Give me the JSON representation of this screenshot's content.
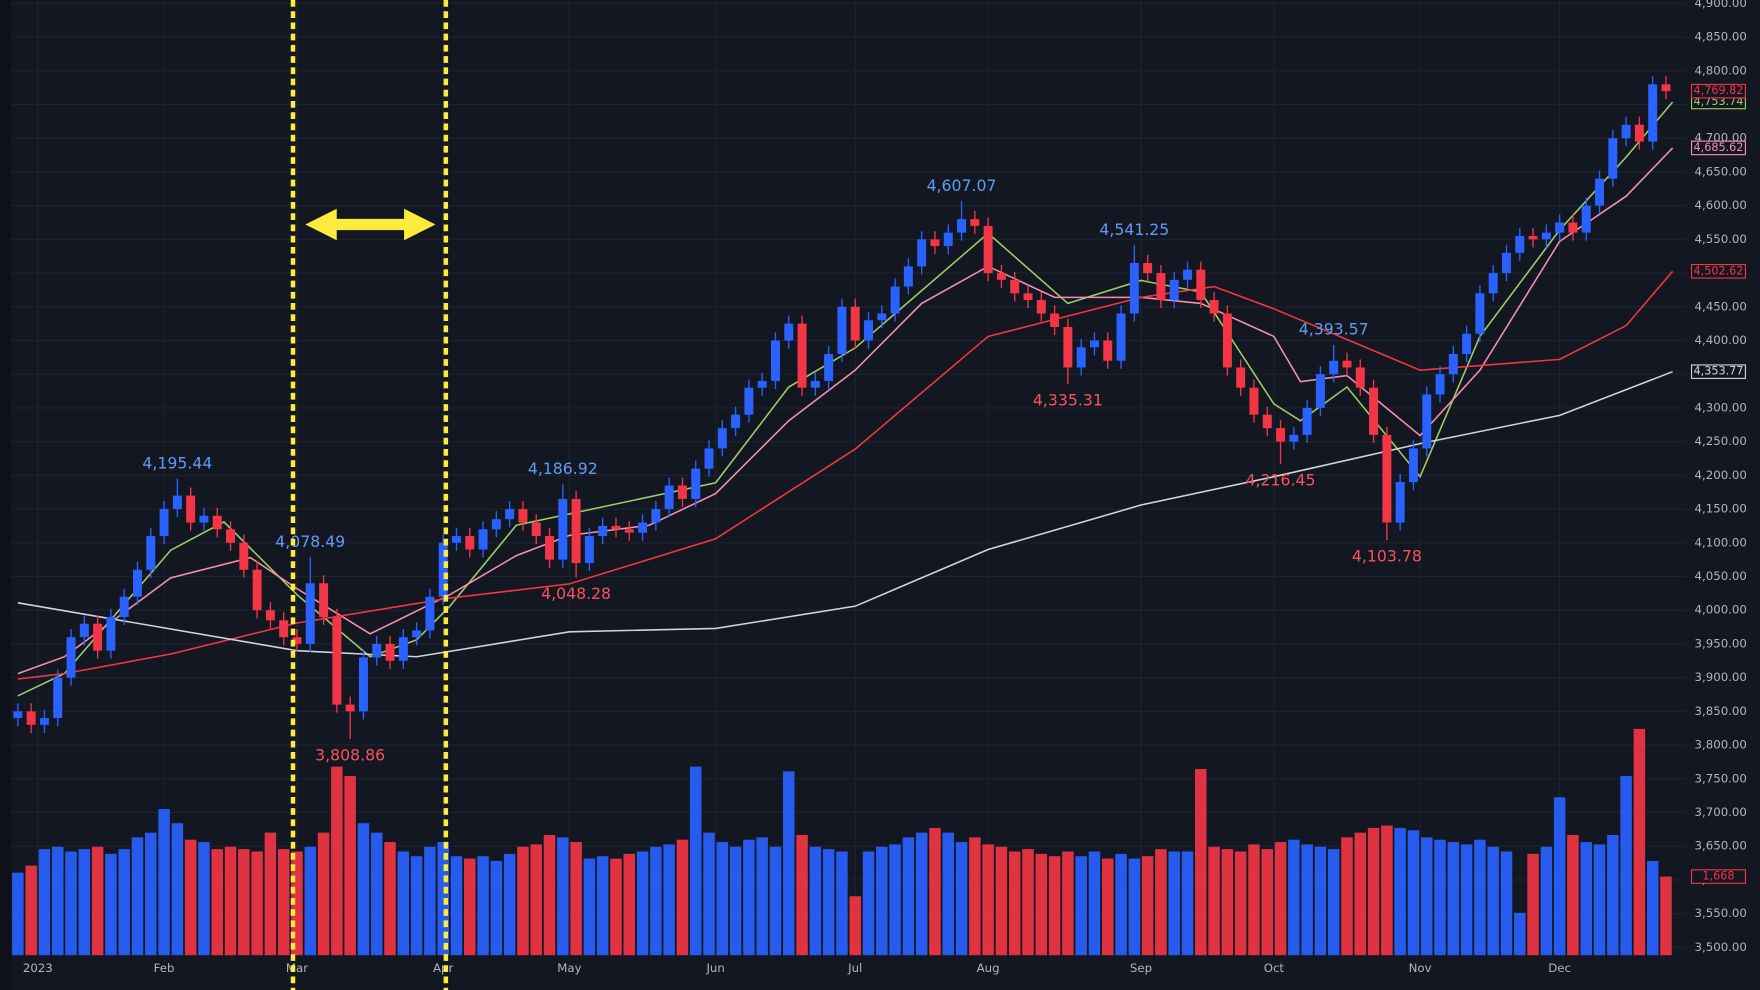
{
  "chart_data": {
    "type": "candlestick",
    "xlim": [
      -1,
      251
    ],
    "ylim": [
      3500,
      4900
    ],
    "xticks": [
      {
        "value": 3,
        "label": "2023"
      },
      {
        "value": 22,
        "label": "Feb"
      },
      {
        "value": 42,
        "label": "Mar"
      },
      {
        "value": 64,
        "label": "Apr"
      },
      {
        "value": 83,
        "label": "May"
      },
      {
        "value": 105,
        "label": "Jun"
      },
      {
        "value": 126,
        "label": "Jul"
      },
      {
        "value": 146,
        "label": "Aug"
      },
      {
        "value": 169,
        "label": "Sep"
      },
      {
        "value": 189,
        "label": "Oct"
      },
      {
        "value": 211,
        "label": "Nov"
      },
      {
        "value": 232,
        "label": "Dec"
      }
    ],
    "yticks": [
      {
        "value": 3500,
        "label": "3,500.00"
      },
      {
        "value": 3550,
        "label": "3,550.00"
      },
      {
        "value": 3600,
        "label": "3,600.00"
      },
      {
        "value": 3650,
        "label": "3,650.00"
      },
      {
        "value": 3700,
        "label": "3,700.00"
      },
      {
        "value": 3750,
        "label": "3,750.00"
      },
      {
        "value": 3800,
        "label": "3,800.00"
      },
      {
        "value": 3850,
        "label": "3,850.00"
      },
      {
        "value": 3900,
        "label": "3,900.00"
      },
      {
        "value": 3950,
        "label": "3,950.00"
      },
      {
        "value": 4000,
        "label": "4,000.00"
      },
      {
        "value": 4050,
        "label": "4,050.00"
      },
      {
        "value": 4100,
        "label": "4,100.00"
      },
      {
        "value": 4150,
        "label": "4,150.00"
      },
      {
        "value": 4200,
        "label": "4,200.00"
      },
      {
        "value": 4250,
        "label": "4,250.00"
      },
      {
        "value": 4300,
        "label": "4,300.00"
      },
      {
        "value": 4350,
        "label": "4,350.00"
      },
      {
        "value": 4400,
        "label": "4,400.00"
      },
      {
        "value": 4450,
        "label": "4,450.00"
      },
      {
        "value": 4500,
        "label": "4,500.00"
      },
      {
        "value": 4550,
        "label": "4,550.00"
      },
      {
        "value": 4600,
        "label": "4,600.00"
      },
      {
        "value": 4650,
        "label": "4,650.00"
      },
      {
        "value": 4700,
        "label": "4,700.00"
      },
      {
        "value": 4750,
        "label": "4,750.00"
      },
      {
        "value": 4800,
        "label": "4,800.00"
      },
      {
        "value": 4850,
        "label": "4,850.00"
      },
      {
        "value": 4900,
        "label": "4,900.00"
      }
    ],
    "grid": true,
    "up_color": "#2962ff",
    "down_color": "#f23645",
    "x": [
      0,
      2,
      4,
      6,
      8,
      10,
      12,
      14,
      16,
      18,
      20,
      22,
      24,
      26,
      28,
      30,
      32,
      34,
      36,
      38,
      40,
      42,
      44,
      46,
      48,
      50,
      52,
      54,
      56,
      58,
      60,
      62,
      64,
      66,
      68,
      70,
      72,
      74,
      76,
      78,
      80,
      82,
      84,
      86,
      88,
      90,
      92,
      94,
      96,
      98,
      100,
      102,
      104,
      106,
      108,
      110,
      112,
      114,
      116,
      118,
      120,
      122,
      124,
      126,
      128,
      130,
      132,
      134,
      136,
      138,
      140,
      142,
      144,
      146,
      148,
      150,
      152,
      154,
      156,
      158,
      160,
      162,
      164,
      166,
      168,
      170,
      172,
      174,
      176,
      178,
      180,
      182,
      184,
      186,
      188,
      190,
      192,
      194,
      196,
      198,
      200,
      202,
      204,
      206,
      208,
      210,
      212,
      214,
      216,
      218,
      220,
      222,
      224,
      226,
      228,
      230,
      232,
      234,
      236,
      238,
      240,
      242,
      244,
      246,
      248
    ],
    "open": [
      3840,
      3850,
      3830,
      3840,
      3900,
      3960,
      3980,
      3940,
      3990,
      4020,
      4060,
      4110,
      4150,
      4170,
      4130,
      4140,
      4120,
      4100,
      4060,
      4000,
      3985,
      3960,
      3950,
      4040,
      3990,
      3860,
      3850,
      3930,
      3950,
      3925,
      3960,
      3970,
      4020,
      4100,
      4110,
      4090,
      4120,
      4135,
      4150,
      4130,
      4110,
      4075,
      4165,
      4070,
      4110,
      4125,
      4120,
      4115,
      4130,
      4150,
      4185,
      4165,
      4210,
      4240,
      4270,
      4290,
      4330,
      4340,
      4400,
      4425,
      4330,
      4340,
      4380,
      4450,
      4400,
      4430,
      4440,
      4480,
      4510,
      4550,
      4540,
      4560,
      4580,
      4570,
      4500,
      4490,
      4470,
      4460,
      4440,
      4420,
      4360,
      4390,
      4400,
      4370,
      4440,
      4515,
      4500,
      4460,
      4490,
      4505,
      4460,
      4440,
      4360,
      4330,
      4290,
      4270,
      4250,
      4260,
      4300,
      4350,
      4370,
      4360,
      4330,
      4260,
      4130,
      4190,
      4240,
      4320,
      4350,
      4380,
      4410,
      4470,
      4500,
      4530,
      4555,
      4550,
      4560,
      4575,
      4560,
      4600,
      4640,
      4700,
      4720,
      4695,
      4780
    ],
    "high": [
      3862,
      3862,
      3852,
      3912,
      3972,
      3992,
      3992,
      4002,
      4032,
      4072,
      4122,
      4162,
      4195.44,
      4182,
      4152,
      4152,
      4132,
      4112,
      4072,
      4012,
      3997,
      3972,
      4078.49,
      4052,
      4002,
      3872,
      3942,
      3962,
      3962,
      3972,
      3982,
      4032,
      4112,
      4122,
      4122,
      4132,
      4147,
      4162,
      4162,
      4142,
      4122,
      4186.92,
      4177,
      4122,
      4137,
      4137,
      4132,
      4142,
      4162,
      4197,
      4197,
      4222,
      4252,
      4282,
      4302,
      4342,
      4352,
      4412,
      4437,
      4437,
      4352,
      4392,
      4462,
      4462,
      4442,
      4452,
      4492,
      4522,
      4562,
      4562,
      4572,
      4607.07,
      4592,
      4582,
      4512,
      4502,
      4482,
      4472,
      4452,
      4432,
      4402,
      4412,
      4412,
      4452,
      4541.25,
      4527,
      4512,
      4502,
      4517,
      4517,
      4472,
      4452,
      4372,
      4342,
      4302,
      4282,
      4272,
      4312,
      4362,
      4393.57,
      4382,
      4372,
      4342,
      4272,
      4202,
      4252,
      4332,
      4362,
      4392,
      4422,
      4482,
      4512,
      4542,
      4567,
      4567,
      4572,
      4587,
      4587,
      4612,
      4652,
      4712,
      4732,
      4732,
      4792,
      4792
    ],
    "low": [
      3828,
      3818,
      3818,
      3828,
      3888,
      3948,
      3928,
      3928,
      3978,
      4008,
      4048,
      4098,
      4138,
      4118,
      4118,
      4108,
      4088,
      4048,
      3988,
      3973,
      3948,
      3938,
      3938,
      3978,
      3848,
      3808.86,
      3838,
      3918,
      3913,
      3913,
      3948,
      3958,
      4008,
      4088,
      4078,
      4078,
      4108,
      4123,
      4118,
      4098,
      4063,
      4063,
      4048.28,
      4058,
      4098,
      4108,
      4103,
      4103,
      4118,
      4138,
      4153,
      4153,
      4198,
      4228,
      4258,
      4278,
      4318,
      4328,
      4388,
      4318,
      4318,
      4328,
      4368,
      4388,
      4388,
      4418,
      4428,
      4468,
      4498,
      4528,
      4528,
      4548,
      4558,
      4488,
      4478,
      4458,
      4448,
      4428,
      4408,
      4335.31,
      4348,
      4378,
      4358,
      4358,
      4428,
      4488,
      4448,
      4448,
      4478,
      4448,
      4428,
      4348,
      4318,
      4278,
      4258,
      4216.45,
      4238,
      4248,
      4288,
      4338,
      4348,
      4318,
      4248,
      4103.78,
      4118,
      4178,
      4228,
      4308,
      4338,
      4368,
      4398,
      4458,
      4488,
      4518,
      4538,
      4538,
      4548,
      4548,
      4548,
      4588,
      4628,
      4688,
      4683,
      4683,
      4757.82
    ],
    "close": [
      3850,
      3830,
      3840,
      3900,
      3960,
      3980,
      3940,
      3990,
      4020,
      4060,
      4110,
      4150,
      4170,
      4130,
      4140,
      4120,
      4100,
      4060,
      4000,
      3985,
      3960,
      3950,
      4040,
      3990,
      3860,
      3850,
      3930,
      3950,
      3925,
      3960,
      3970,
      4020,
      4100,
      4110,
      4090,
      4120,
      4135,
      4150,
      4130,
      4110,
      4075,
      4165,
      4070,
      4110,
      4125,
      4120,
      4115,
      4130,
      4150,
      4185,
      4165,
      4210,
      4240,
      4270,
      4290,
      4330,
      4340,
      4400,
      4425,
      4330,
      4340,
      4380,
      4450,
      4400,
      4430,
      4440,
      4480,
      4510,
      4550,
      4540,
      4560,
      4580,
      4570,
      4500,
      4490,
      4470,
      4460,
      4440,
      4420,
      4360,
      4390,
      4400,
      4370,
      4440,
      4515,
      4500,
      4460,
      4490,
      4505,
      4460,
      4440,
      4360,
      4330,
      4290,
      4270,
      4250,
      4260,
      4300,
      4350,
      4370,
      4360,
      4330,
      4260,
      4130,
      4190,
      4240,
      4320,
      4350,
      4380,
      4410,
      4470,
      4500,
      4530,
      4555,
      4550,
      4560,
      4575,
      4560,
      4600,
      4640,
      4700,
      4720,
      4695,
      4780,
      4769.82
    ],
    "last_label": "4,769.82",
    "volume": {
      "ylim": [
        0,
        6000
      ],
      "last_label": "1,668",
      "values": [
        1750,
        1900,
        2250,
        2300,
        2200,
        2250,
        2300,
        2150,
        2250,
        2500,
        2600,
        3100,
        2800,
        2450,
        2400,
        2250,
        2300,
        2250,
        2200,
        2600,
        2250,
        2200,
        2300,
        2600,
        4000,
        3800,
        2800,
        2600,
        2400,
        2200,
        2100,
        2300,
        2400,
        2100,
        2050,
        2100,
        2000,
        2150,
        2300,
        2350,
        2550,
        2500,
        2400,
        2050,
        2100,
        2050,
        2150,
        2200,
        2300,
        2350,
        2450,
        4000,
        2600,
        2400,
        2300,
        2450,
        2500,
        2300,
        3900,
        2550,
        2300,
        2250,
        2200,
        1250,
        2200,
        2300,
        2350,
        2500,
        2600,
        2700,
        2600,
        2400,
        2500,
        2350,
        2300,
        2200,
        2250,
        2150,
        2100,
        2200,
        2100,
        2200,
        2050,
        2150,
        2050,
        2100,
        2250,
        2200,
        2200,
        3950,
        2300,
        2250,
        2200,
        2350,
        2250,
        2400,
        2450,
        2350,
        2300,
        2250,
        2500,
        2600,
        2700,
        2750,
        2700,
        2650,
        2500,
        2450,
        2400,
        2350,
        2450,
        2300,
        2200,
        900,
        2150,
        2300,
        3350,
        2550,
        2400,
        2350,
        2550,
        3800,
        4800,
        2000,
        1668
      ]
    },
    "moving_averages": [
      {
        "color": "#9ccc65",
        "last_label": "4,753.74",
        "x": [
          0,
          7,
          23,
          31,
          42,
          53,
          60,
          65,
          75,
          105,
          116,
          126,
          146,
          158,
          169,
          178,
          189,
          193,
          200,
          211,
          220,
          232,
          242,
          249
        ],
        "values": [
          3873,
          3906,
          4089,
          4131,
          4023,
          3931,
          3956,
          4006,
          4126,
          4189,
          4331,
          4389,
          4559,
          4455,
          4489,
          4472,
          4306,
          4281,
          4331,
          4198,
          4406,
          4564,
          4672,
          4753.74
        ]
      },
      {
        "color": "#f48fb1",
        "last_label": "4,685.62",
        "x": [
          0,
          7,
          23,
          35,
          42,
          53,
          65,
          75,
          83,
          95,
          105,
          116,
          126,
          136,
          146,
          156,
          169,
          178,
          189,
          193,
          200,
          211,
          220,
          232,
          242,
          249
        ],
        "values": [
          3906,
          3931,
          4048,
          4078,
          4032,
          3965,
          4023,
          4081,
          4111,
          4126,
          4173,
          4281,
          4356,
          4455,
          4510,
          4464,
          4464,
          4455,
          4406,
          4339,
          4348,
          4259,
          4356,
          4547,
          4614,
          4685.62
        ]
      },
      {
        "color": "#f23645",
        "last_label": "4,502.62",
        "x": [
          0,
          7,
          23,
          42,
          65,
          83,
          105,
          126,
          146,
          169,
          180,
          189,
          211,
          232,
          242,
          249
        ],
        "values": [
          3898,
          3906,
          3935,
          3981,
          4018,
          4039,
          4106,
          4239,
          4406,
          4464,
          4480,
          4447,
          4356,
          4372,
          4422,
          4502.62
        ]
      },
      {
        "color": "#d1d4dc",
        "last_label": "4,353.77",
        "x": [
          0,
          42,
          60,
          83,
          105,
          126,
          146,
          169,
          189,
          211,
          232,
          249
        ],
        "values": [
          4011,
          3940,
          3931,
          3968,
          3973,
          4006,
          4090,
          4156,
          4198,
          4247,
          4289,
          4353.77
        ]
      }
    ],
    "annotations": [
      {
        "label": "4,195.44",
        "value": 4195.44,
        "x": 24,
        "kind": "high"
      },
      {
        "label": "4,078.49",
        "value": 4078.49,
        "x": 44,
        "kind": "high"
      },
      {
        "label": "3,808.86",
        "value": 3808.86,
        "x": 50,
        "kind": "low"
      },
      {
        "label": "4,186.92",
        "value": 4186.92,
        "x": 82,
        "kind": "high"
      },
      {
        "label": "4,048.28",
        "value": 4048.28,
        "x": 84,
        "kind": "low"
      },
      {
        "label": "4,607.07",
        "value": 4607.07,
        "x": 142,
        "kind": "high"
      },
      {
        "label": "4,335.31",
        "value": 4335.31,
        "x": 158,
        "kind": "low"
      },
      {
        "label": "4,541.25",
        "value": 4541.25,
        "x": 168,
        "kind": "high"
      },
      {
        "label": "4,216.45",
        "value": 4216.45,
        "x": 190,
        "kind": "low"
      },
      {
        "label": "4,393.57",
        "value": 4393.57,
        "x": 198,
        "kind": "high"
      },
      {
        "label": "4,103.78",
        "value": 4103.78,
        "x": 206,
        "kind": "low"
      }
    ],
    "highlight": {
      "x": [
        41.4,
        64.4
      ],
      "color": "#ffeb3b"
    }
  }
}
